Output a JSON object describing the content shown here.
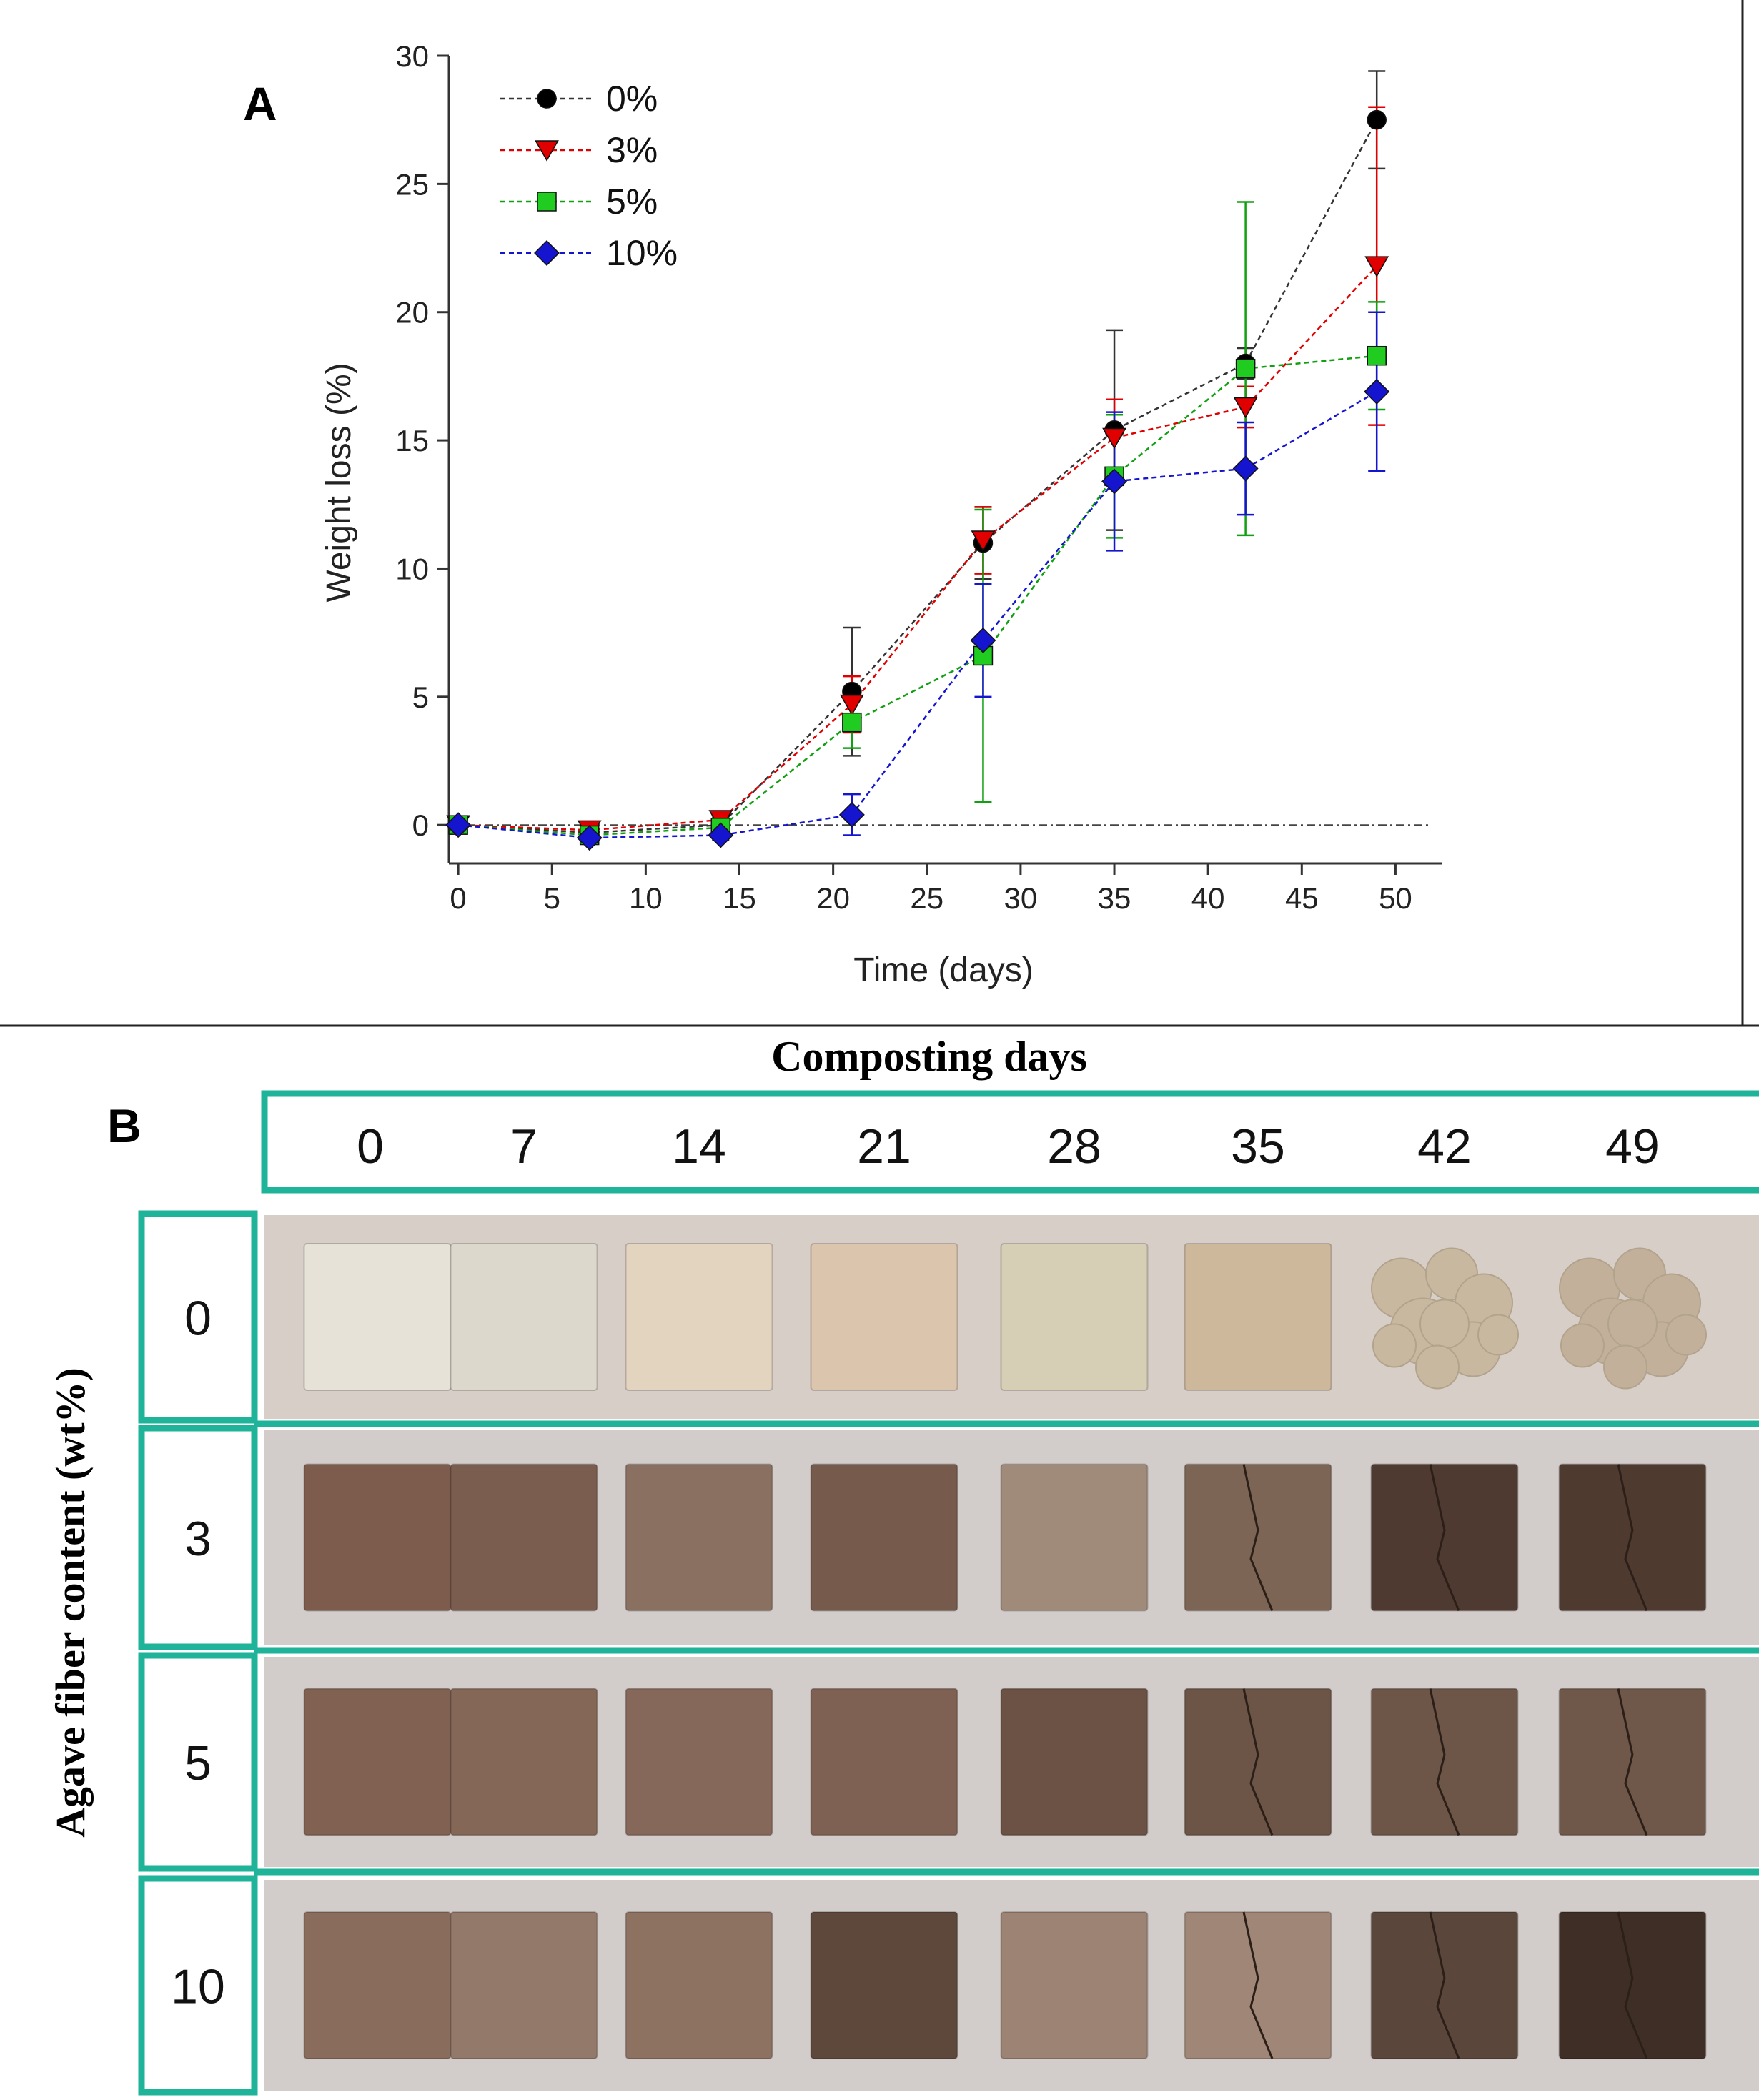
{
  "panel_a": {
    "label": "A"
  },
  "panel_b": {
    "label": "B",
    "title": "Composting days",
    "row_axis_label": "Agave fiber content (wt%)",
    "days": [
      "0",
      "7",
      "14",
      "21",
      "28",
      "35",
      "42",
      "49"
    ],
    "rows": [
      {
        "content": "0",
        "tones": [
          "#e6e2d8",
          "#ddd8cc",
          "#e3d4c0",
          "#dcc5ad",
          "#d6cfb5",
          "#cdb89b",
          "#c9b8a0",
          "#c2b09a"
        ]
      },
      {
        "content": "3",
        "tones": [
          "#7d5c4e",
          "#7b5d4f",
          "#8a7061",
          "#765a4b",
          "#a08b7b",
          "#7d6555",
          "#4e3a30",
          "#4f3a30"
        ]
      },
      {
        "content": "5",
        "tones": [
          "#806152",
          "#846757",
          "#86685a",
          "#7f6153",
          "#6b5244",
          "#6c5446",
          "#6d5548",
          "#6f574a"
        ]
      },
      {
        "content": "10",
        "tones": [
          "#8a6c5c",
          "#93796a",
          "#8e7261",
          "#5e483c",
          "#9c8373",
          "#9f8676",
          "#5a463b",
          "#3e2e25"
        ]
      }
    ],
    "colors": {
      "frame": "#1fb39a",
      "backdrop_top": "#d8cec8",
      "backdrop": "#d2cdcb"
    }
  },
  "chart_data": {
    "type": "line",
    "title": "",
    "xlabel": "Time (days)",
    "ylabel": "Weight loss (%)",
    "xlim": [
      -0.5,
      52.5
    ],
    "ylim": [
      -1.5,
      30
    ],
    "xticks": [
      0,
      5,
      10,
      15,
      20,
      25,
      30,
      35,
      40,
      45,
      50
    ],
    "yticks": [
      0,
      5,
      10,
      15,
      20,
      25,
      30
    ],
    "baseline": 0,
    "legend_position": "top-left",
    "x": [
      0,
      7,
      14,
      21,
      28,
      35,
      42,
      49
    ],
    "series": [
      {
        "name": "0%",
        "marker": "circle",
        "color": "#000000",
        "line_color": "#333333",
        "values": [
          0,
          -0.3,
          0,
          5.2,
          11.0,
          15.4,
          18.0,
          27.5
        ],
        "errors": [
          0,
          0.2,
          0.3,
          2.5,
          1.4,
          3.9,
          0.6,
          1.9
        ]
      },
      {
        "name": "3%",
        "marker": "triangle-down",
        "color": "#e00000",
        "line_color": "#e00000",
        "values": [
          0,
          -0.2,
          0.2,
          4.7,
          11.1,
          15.1,
          16.3,
          21.8
        ],
        "errors": [
          0,
          0.2,
          0.3,
          1.1,
          1.3,
          1.5,
          0.8,
          6.2
        ]
      },
      {
        "name": "5%",
        "marker": "square",
        "color": "#1fcc1f",
        "line_color": "#11a011",
        "values": [
          0,
          -0.4,
          -0.1,
          4.0,
          6.6,
          13.6,
          17.8,
          18.3
        ],
        "errors": [
          0,
          0.2,
          0.2,
          1.0,
          5.7,
          2.4,
          6.5,
          2.1
        ]
      },
      {
        "name": "10%",
        "marker": "diamond",
        "color": "#1515d0",
        "line_color": "#1515d0",
        "values": [
          0,
          -0.5,
          -0.4,
          0.4,
          7.2,
          13.4,
          13.9,
          16.9
        ],
        "errors": [
          0,
          0.2,
          0.2,
          0.8,
          2.2,
          2.7,
          1.8,
          3.1
        ]
      }
    ]
  }
}
